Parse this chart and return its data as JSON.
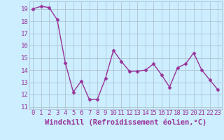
{
  "x": [
    0,
    1,
    2,
    3,
    4,
    5,
    6,
    7,
    8,
    9,
    10,
    11,
    12,
    13,
    14,
    15,
    16,
    17,
    18,
    19,
    20,
    21,
    22,
    23
  ],
  "y": [
    19.0,
    19.2,
    19.1,
    18.1,
    14.6,
    12.2,
    13.1,
    11.6,
    11.6,
    13.3,
    15.6,
    14.7,
    13.9,
    13.9,
    14.0,
    14.5,
    13.6,
    12.6,
    14.2,
    14.5,
    15.4,
    14.0,
    13.2,
    12.4
  ],
  "line_color": "#993399",
  "marker": "D",
  "markersize": 2.5,
  "linewidth": 1,
  "xlabel": "Windchill (Refroidissement éolien,°C)",
  "xlabel_fontsize": 7.5,
  "xlabel_color": "#993399",
  "ylabel_ticks": [
    11,
    12,
    13,
    14,
    15,
    16,
    17,
    18,
    19
  ],
  "ylim": [
    10.8,
    19.6
  ],
  "xlim": [
    -0.5,
    23.5
  ],
  "background_color": "#cceeff",
  "grid_color": "#aabbcc",
  "tick_fontsize": 6.5,
  "tick_color": "#993399"
}
